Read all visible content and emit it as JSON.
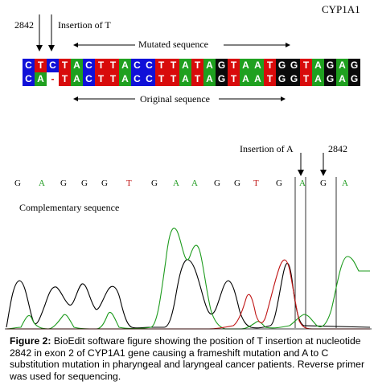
{
  "gene_label": "CYP1A1",
  "top_annotation": {
    "position": "2842",
    "label": "Insertion of T"
  },
  "mutated_label": "Mutated sequence",
  "original_label": "Original sequence",
  "mutated_sequence": [
    "C",
    "T",
    "C",
    "T",
    "A",
    "C",
    "T",
    "T",
    "A",
    "C",
    "C",
    "T",
    "T",
    "A",
    "T",
    "A",
    "G",
    "T",
    "A",
    "A",
    "T",
    "G",
    "G",
    "T",
    "A",
    "G",
    "A",
    "G"
  ],
  "original_sequence": [
    "C",
    "A",
    "-",
    "T",
    "A",
    "C",
    "T",
    "T",
    "A",
    "C",
    "C",
    "T",
    "T",
    "A",
    "T",
    "A",
    "G",
    "T",
    "A",
    "A",
    "T",
    "G",
    "G",
    "T",
    "A",
    "G",
    "A",
    "G"
  ],
  "base_colors": {
    "A": "#1fa01f",
    "C": "#1010d8",
    "G": "#0a0a0a",
    "T": "#d80b0b",
    "-": "#ffffff"
  },
  "bottom_annotation": {
    "insertion_label": "Insertion of A",
    "position": "2842"
  },
  "complementary_label": "Complementary sequence",
  "chromatogram_bases": [
    "G",
    "A",
    "G",
    "G",
    "G",
    "T",
    "G",
    "A",
    "A",
    "G",
    "G",
    "T",
    "G",
    "A",
    "G",
    "A"
  ],
  "chromatogram_colors": {
    "G": "#000000",
    "A": "#1c9a1c",
    "T": "#c01515"
  },
  "caption": {
    "prefix": "Figure 2:",
    "text": " BioEdit software figure showing the position of T insertion at nucleotide 2842 in exon 2 of CYP1A1 gene causing a frameshift mutation and A to C substitution mutation in pharyngeal and laryngeal cancer patients. Reverse primer was used for sequencing."
  }
}
